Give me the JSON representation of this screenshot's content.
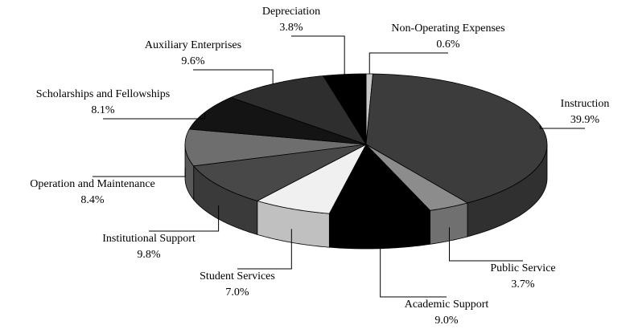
{
  "chart_data": {
    "type": "pie",
    "categories": [
      "Non-Operating Expenses",
      "Instruction",
      "Public Service",
      "Academic Support",
      "Student Services",
      "Institutional Support",
      "Operation and Maintenance",
      "Scholarships and Fellowships",
      "Auxiliary Enterprises",
      "Depreciation"
    ],
    "values": [
      0.6,
      39.9,
      3.7,
      9.0,
      7.0,
      9.8,
      8.4,
      8.1,
      9.6,
      3.8
    ],
    "value_labels": [
      "0.6%",
      "39.9%",
      "3.7%",
      "9.0%",
      "7.0%",
      "9.8%",
      "8.4%",
      "8.1%",
      "9.6%",
      "3.8%"
    ],
    "colors": [
      "#c8c8c8",
      "#3c3c3c",
      "#8c8c8c",
      "#000000",
      "#f0f0f0",
      "#484848",
      "#6e6e6e",
      "#141414",
      "#2e2e2e",
      "#000000"
    ]
  }
}
